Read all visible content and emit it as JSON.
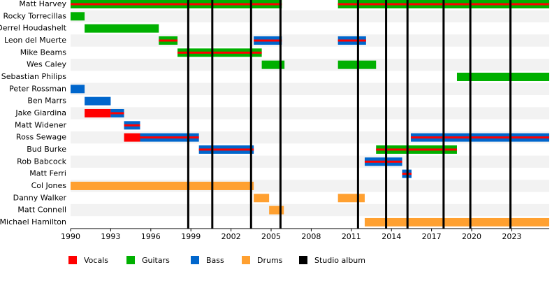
{
  "chart_data": {
    "type": "timeline",
    "xlim": [
      1990,
      2025.8
    ],
    "xticks": [
      1990,
      1993,
      1996,
      1999,
      2002,
      2005,
      2008,
      2011,
      2014,
      2017,
      2020,
      2023
    ],
    "series": [
      {
        "name": "Vocals",
        "color": "#ff0000"
      },
      {
        "name": "Guitars",
        "color": "#00b000"
      },
      {
        "name": "Bass",
        "color": "#0066cc"
      },
      {
        "name": "Drums",
        "color": "#ffa030"
      }
    ],
    "albums": {
      "name": "Studio album",
      "color": "#000000",
      "values": [
        1998.8,
        2000.6,
        2003.5,
        2005.7,
        2011.5,
        2013.6,
        2015.2,
        2017.9,
        2019.9,
        2022.9
      ]
    },
    "members": [
      {
        "name": "Matt Harvey",
        "spans": [
          {
            "start": 1990,
            "end": 2005.8,
            "roles": [
              1,
              0
            ]
          },
          {
            "start": 2010.0,
            "end": 2025.8,
            "roles": [
              1,
              0
            ]
          }
        ]
      },
      {
        "name": "Rocky Torrecillas",
        "spans": [
          {
            "start": 1990,
            "end": 1991.05,
            "roles": [
              1
            ]
          }
        ]
      },
      {
        "name": "Derrel Houdashelt",
        "spans": [
          {
            "start": 1991.05,
            "end": 1996.6,
            "roles": [
              1
            ]
          }
        ]
      },
      {
        "name": "Leon del Muerte",
        "spans": [
          {
            "start": 1996.6,
            "end": 1998.0,
            "roles": [
              1,
              0
            ]
          },
          {
            "start": 2003.7,
            "end": 2005.8,
            "roles": [
              2,
              0
            ]
          },
          {
            "start": 2010.0,
            "end": 2012.1,
            "roles": [
              2,
              0
            ]
          }
        ]
      },
      {
        "name": "Mike Beams",
        "spans": [
          {
            "start": 1998.0,
            "end": 2004.3,
            "roles": [
              1,
              0
            ]
          }
        ]
      },
      {
        "name": "Wes Caley",
        "spans": [
          {
            "start": 2004.3,
            "end": 2006.0,
            "roles": [
              1
            ]
          },
          {
            "start": 2010.0,
            "end": 2012.85,
            "roles": [
              1
            ]
          }
        ]
      },
      {
        "name": "Sebastian Philips",
        "spans": [
          {
            "start": 2018.9,
            "end": 2025.8,
            "roles": [
              1
            ]
          }
        ]
      },
      {
        "name": "Peter Rossman",
        "spans": [
          {
            "start": 1990,
            "end": 1991.05,
            "roles": [
              2
            ]
          }
        ]
      },
      {
        "name": "Ben Marrs",
        "spans": [
          {
            "start": 1991.05,
            "end": 1993.0,
            "roles": [
              2
            ]
          }
        ]
      },
      {
        "name": "Jake Giardina",
        "spans": [
          {
            "start": 1991.05,
            "end": 1993.0,
            "roles": [
              0
            ]
          },
          {
            "start": 1993.0,
            "end": 1994.0,
            "roles": [
              2,
              0
            ]
          }
        ]
      },
      {
        "name": "Matt Widener",
        "spans": [
          {
            "start": 1994.0,
            "end": 1995.2,
            "roles": [
              2,
              0
            ]
          }
        ]
      },
      {
        "name": "Ross Sewage",
        "spans": [
          {
            "start": 1994.0,
            "end": 1995.2,
            "roles": [
              0
            ]
          },
          {
            "start": 1995.2,
            "end": 1999.6,
            "roles": [
              2,
              0
            ]
          },
          {
            "start": 2015.45,
            "end": 2025.8,
            "roles": [
              2,
              0
            ]
          }
        ]
      },
      {
        "name": "Bud Burke",
        "spans": [
          {
            "start": 1999.6,
            "end": 2003.7,
            "roles": [
              2,
              0
            ]
          },
          {
            "start": 2012.85,
            "end": 2018.9,
            "roles": [
              1,
              0
            ]
          }
        ]
      },
      {
        "name": "Rob Babcock",
        "spans": [
          {
            "start": 2012.0,
            "end": 2014.8,
            "roles": [
              2,
              0
            ]
          }
        ]
      },
      {
        "name": "Matt Ferri",
        "spans": [
          {
            "start": 2014.8,
            "end": 2015.5,
            "roles": [
              2,
              0
            ]
          }
        ]
      },
      {
        "name": "Col Jones",
        "spans": [
          {
            "start": 1990,
            "end": 2003.7,
            "roles": [
              3
            ]
          }
        ]
      },
      {
        "name": "Danny Walker",
        "spans": [
          {
            "start": 2003.7,
            "end": 2004.85,
            "roles": [
              3
            ]
          },
          {
            "start": 2010.0,
            "end": 2012.0,
            "roles": [
              3
            ]
          }
        ]
      },
      {
        "name": "Matt Connell",
        "spans": [
          {
            "start": 2004.85,
            "end": 2005.95,
            "roles": [
              3
            ]
          }
        ]
      },
      {
        "name": "Michael Hamilton",
        "spans": [
          {
            "start": 2012.0,
            "end": 2025.8,
            "roles": [
              3
            ]
          }
        ]
      }
    ]
  }
}
